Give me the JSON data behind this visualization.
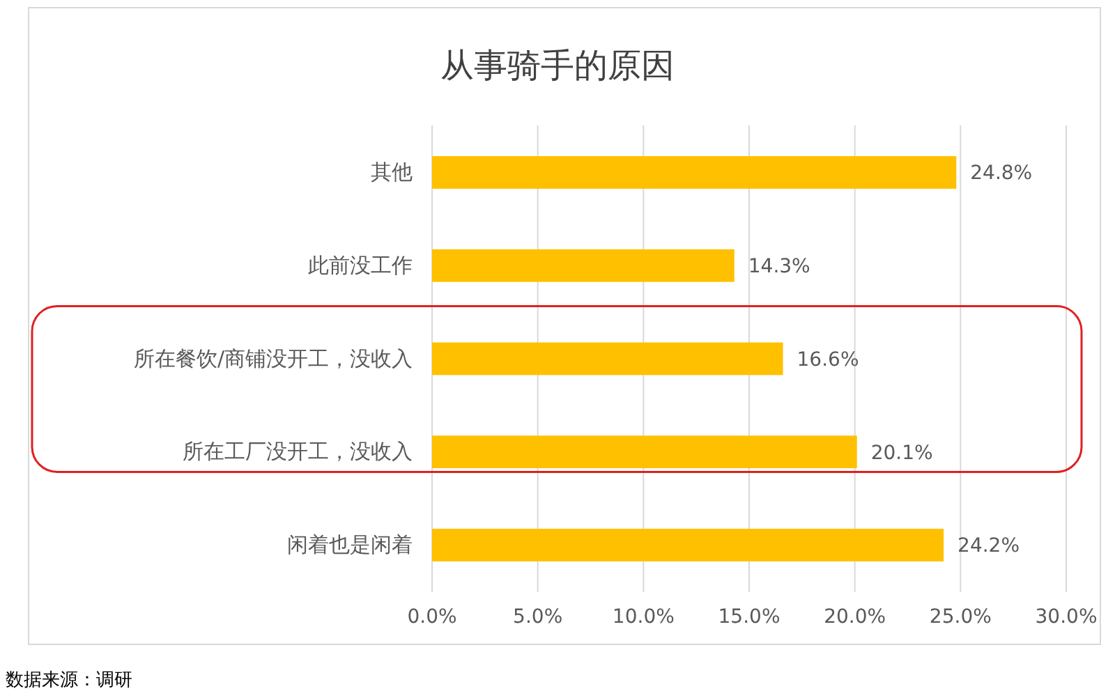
{
  "chart_data": {
    "type": "bar",
    "orientation": "horizontal",
    "title": "从事骑手的原因",
    "categories": [
      "其他",
      "此前没工作",
      "所在餐饮/商铺没开工，没收入",
      "所在工厂没开工，没收入",
      "闲着也是闲着"
    ],
    "values": [
      24.8,
      14.3,
      16.6,
      20.1,
      24.2
    ],
    "color": "#ffc000",
    "value_labels": [
      "24.8%",
      "14.3%",
      "16.6%",
      "20.1%",
      "24.2%"
    ],
    "xlim": [
      0,
      30
    ],
    "xticks": [
      {
        "value": 0,
        "label": "0.0%"
      },
      {
        "value": 5,
        "label": "5.0%"
      },
      {
        "value": 10,
        "label": "10.0%"
      },
      {
        "value": 15,
        "label": "15.0%"
      },
      {
        "value": 20,
        "label": "20.0%"
      },
      {
        "value": 25,
        "label": "25.0%"
      },
      {
        "value": 30,
        "label": "30.0%"
      }
    ],
    "grid": "x",
    "annotations": [
      "数据来源：调研"
    ]
  }
}
